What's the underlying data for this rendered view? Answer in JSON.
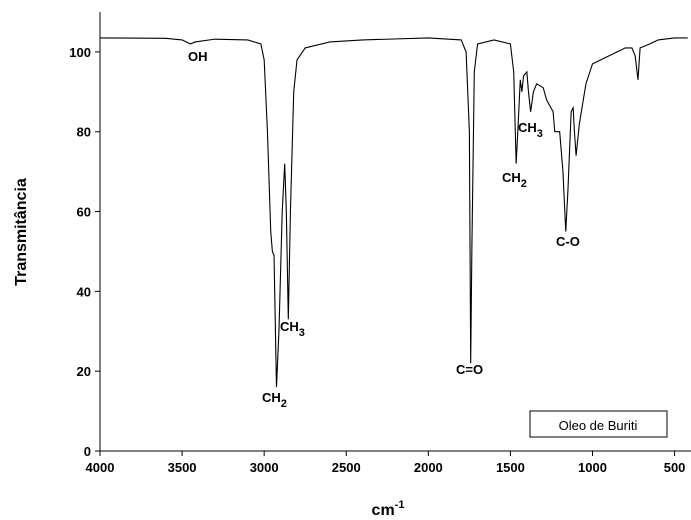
{
  "chart_data": {
    "type": "line",
    "x_label": {
      "text": "cm",
      "sup": "-1"
    },
    "y_label": "Transmitância",
    "xlim": [
      4000,
      400
    ],
    "ylim": [
      0,
      110
    ],
    "xticks": [
      4000,
      3500,
      3000,
      2500,
      2000,
      1500,
      1000,
      500
    ],
    "yticks": [
      0,
      20,
      40,
      60,
      80,
      100
    ],
    "legend": "bottom-right",
    "x": [
      4000,
      3600,
      3500,
      3450,
      3420,
      3300,
      3100,
      3020,
      3000,
      2980,
      2960,
      2950,
      2940,
      2925,
      2910,
      2890,
      2875,
      2865,
      2853,
      2840,
      2820,
      2800,
      2750,
      2700,
      2600,
      2400,
      2000,
      1800,
      1770,
      1750,
      1742,
      1735,
      1720,
      1700,
      1600,
      1500,
      1480,
      1465,
      1455,
      1440,
      1430,
      1420,
      1400,
      1390,
      1377,
      1360,
      1340,
      1300,
      1280,
      1240,
      1230,
      1200,
      1180,
      1163,
      1150,
      1130,
      1118,
      1110,
      1100,
      1080,
      1040,
      1000,
      950,
      900,
      850,
      800,
      760,
      740,
      723,
      710,
      650,
      600,
      500,
      420
    ],
    "series": [
      {
        "name": "Oleo de Buriti",
        "color": "#000000",
        "values": [
          103.5,
          103.4,
          103,
          102,
          102.5,
          103.2,
          103,
          102,
          98,
          80,
          55,
          50,
          49,
          16,
          30,
          60,
          72,
          60,
          33,
          60,
          90,
          98,
          101,
          101.5,
          102.5,
          103,
          103.5,
          103,
          100,
          80,
          22,
          50,
          95,
          102,
          103,
          102,
          95,
          72,
          80,
          93,
          90,
          94,
          95,
          90,
          85,
          90,
          92,
          91,
          88,
          85,
          80,
          80,
          70,
          55,
          65,
          85,
          86,
          80,
          74,
          82,
          92,
          97,
          98,
          99,
          100,
          101,
          101,
          99,
          93,
          101,
          102,
          103,
          103.5,
          103.5
        ]
      }
    ],
    "annotations": [
      {
        "text": "OH"
      },
      {
        "text": "CH",
        "sub": "2"
      },
      {
        "text": "CH",
        "sub": "3"
      },
      {
        "text": "C=O"
      },
      {
        "text": "CH",
        "sub": "2"
      },
      {
        "text": "CH",
        "sub": "3"
      },
      {
        "text": "C-O"
      }
    ]
  }
}
